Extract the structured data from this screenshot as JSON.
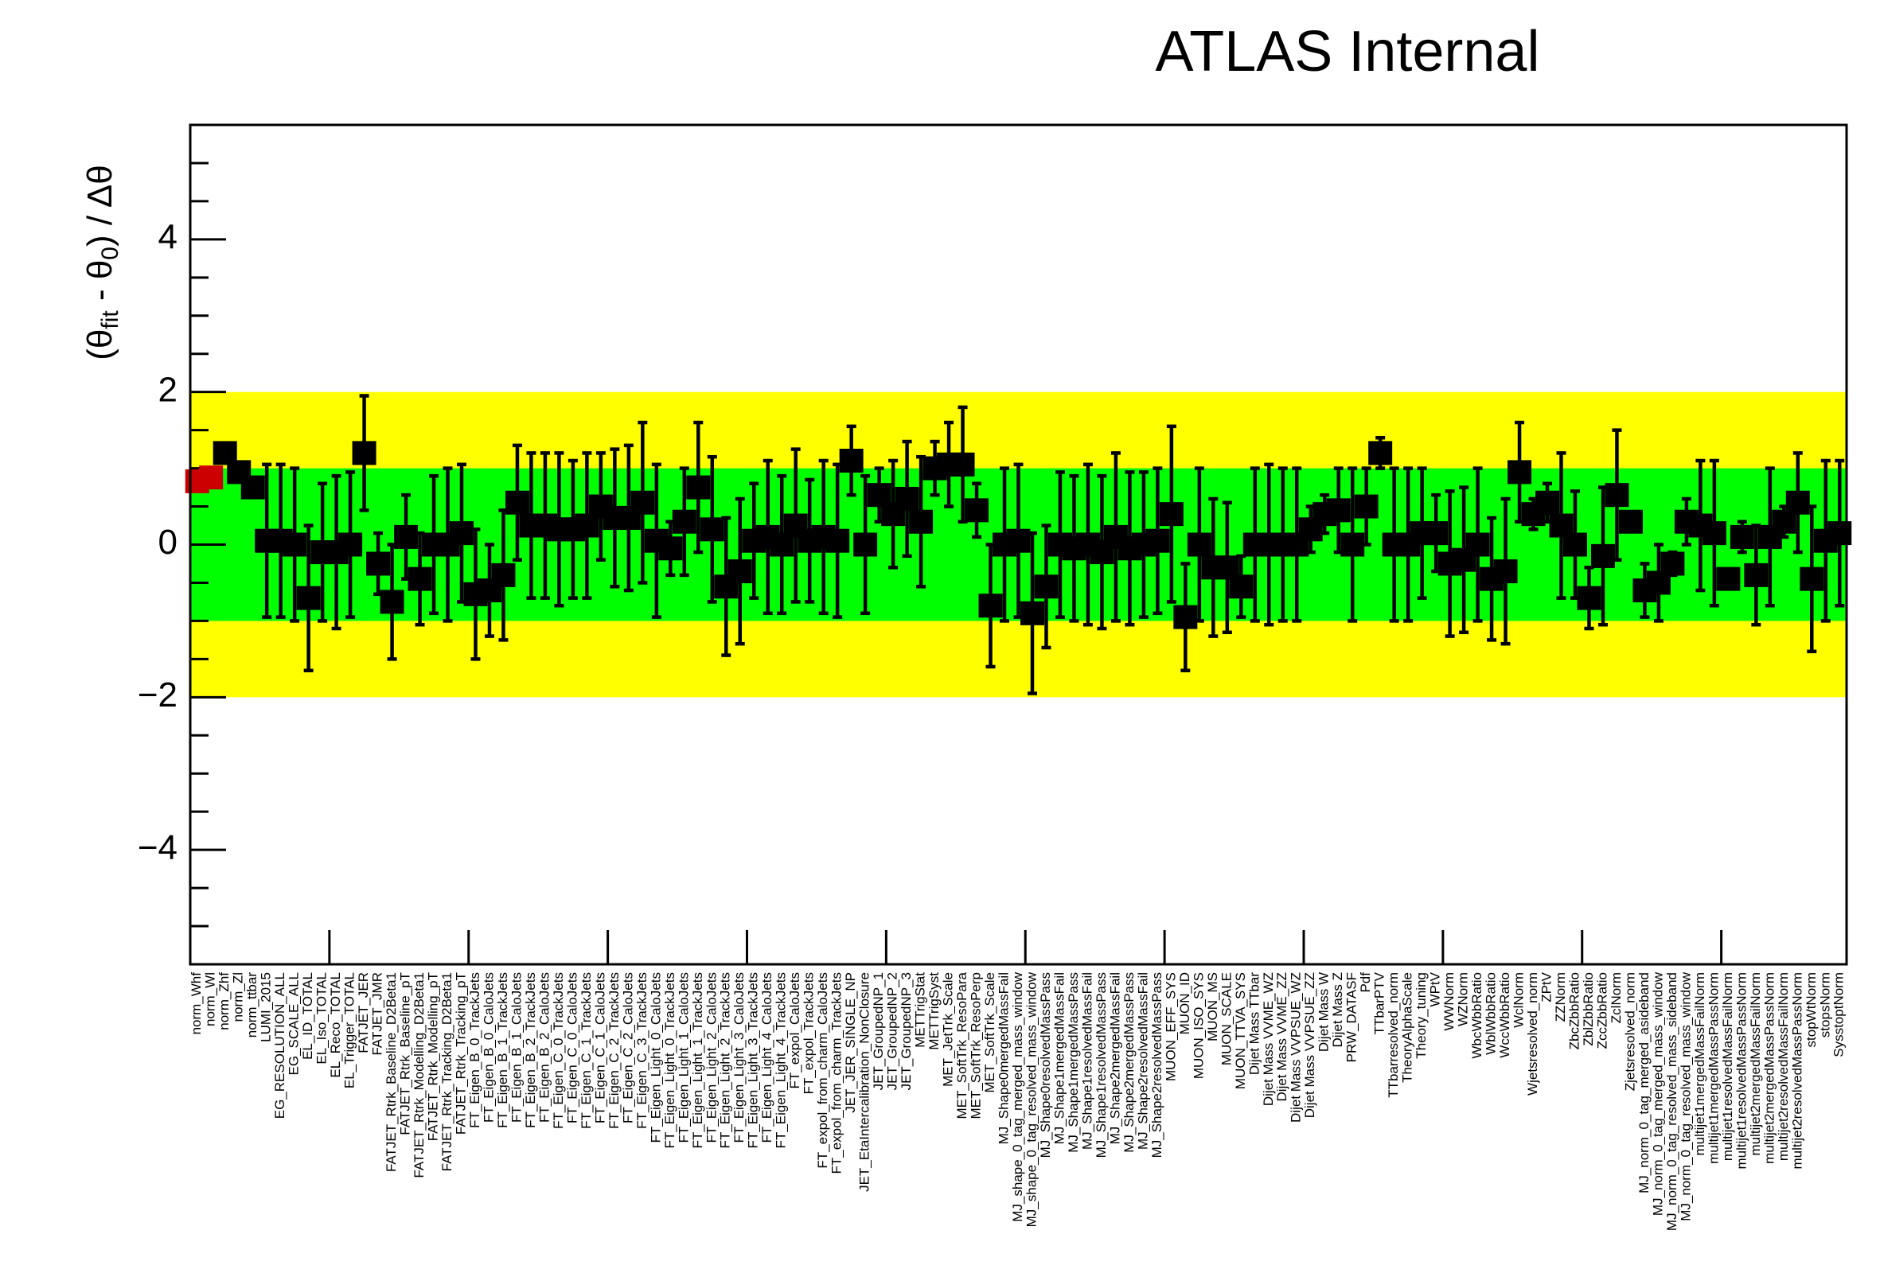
{
  "chart_data": {
    "type": "errorbar",
    "title": "ATLAS Internal",
    "ylabel": [
      "(θ",
      "fit",
      " - θ",
      "0",
      ") / Δθ"
    ],
    "categories": [
      "norm_Whf",
      "norm_Wl",
      "norm_Zhf",
      "norm_Zl",
      "norm_ttbar",
      "LUMI_2015",
      "EG_RESOLUTION_ALL",
      "EG_SCALE_ALL",
      "EL_ID_TOTAL",
      "EL_Iso_TOTAL",
      "EL_Reco_TOTAL",
      "EL_Trigger_TOTAL",
      "FATJET_JER",
      "FATJET_JMR",
      "FATJET_Rtrk_Baseline_D2Beta1",
      "FATJET_Rtrk_Baseline_pT",
      "FATJET_Rtrk_Modelling_D2Beta1",
      "FATJET_Rtrk_Modelling_pT",
      "FATJET_Rtrk_Tracking_D2Beta1",
      "FATJET_Rtrk_Tracking_pT",
      "FT_Eigen_B_0_TrackJets",
      "FT_Eigen_B_0_CaloJets",
      "FT_Eigen_B_1_TrackJets",
      "FT_Eigen_B_1_CaloJets",
      "FT_Eigen_B_2_TrackJets",
      "FT_Eigen_B_2_CaloJets",
      "FT_Eigen_C_0_TrackJets",
      "FT_Eigen_C_0_CaloJets",
      "FT_Eigen_C_1_TrackJets",
      "FT_Eigen_C_1_CaloJets",
      "FT_Eigen_C_2_TrackJets",
      "FT_Eigen_C_2_CaloJets",
      "FT_Eigen_C_3_TrackJets",
      "FT_Eigen_Light_0_CaloJets",
      "FT_Eigen_Light_0_TrackJets",
      "FT_Eigen_Light_1_CaloJets",
      "FT_Eigen_Light_1_TrackJets",
      "FT_Eigen_Light_2_CaloJets",
      "FT_Eigen_Light_2_TrackJets",
      "FT_Eigen_Light_3_CaloJets",
      "FT_Eigen_Light_3_TrackJets",
      "FT_Eigen_Light_4_CaloJets",
      "FT_Eigen_Light_4_TrackJets",
      "FT_expol_CaloJets",
      "FT_expol_TrackJets",
      "FT_expol_from_charm_CaloJets",
      "FT_expol_from_charm_TrackJets",
      "JET_JER_SINGLE_NP",
      "JET_EtaIntercalibration_NonClosure",
      "JET_GroupedNP_1",
      "JET_GroupedNP_2",
      "JET_GroupedNP_3",
      "METTrigStat",
      "METTrigSyst",
      "MET_JetTrk_Scale",
      "MET_SoftTrk_ResoPara",
      "MET_SoftTrk_ResoPerp",
      "MET_SoftTrk_Scale",
      "MJ_Shape0mergedMassFail",
      "MJ_shape_0_tag_merged_mass_window",
      "MJ_shape_0_tag_resolved_mass_window",
      "MJ_Shape0resolvedMassPass",
      "MJ_Shape1mergedMassFail",
      "MJ_Shape1mergedMassPass",
      "MJ_Shape1resolvedMassFail",
      "MJ_Shape1resolvedMassPass",
      "MJ_Shape2mergedMassFail",
      "MJ_Shape2mergedMassPass",
      "MJ_Shape2resolvedMassFail",
      "MJ_Shape2resolvedMassPass",
      "MUON_EFF_SYS",
      "MUON_ID",
      "MUON_ISO_SYS",
      "MUON_MS",
      "MUON_SCALE",
      "MUON_TTVA_SYS",
      "Dijet Mass TTbar",
      "Dijet Mass VVME_WZ",
      "Dijet Mass VVME_ZZ",
      "Dijet Mass VVPSUE_WZ",
      "Dijet Mass VVPSUE_ZZ",
      "Dijet Mass W",
      "Dijet Mass Z",
      "PRW_DATASF",
      "Pdf",
      "TTbarPTV",
      "TTbarresolved_norm",
      "TheoryAlphaScale",
      "Theory_tuning",
      "WPtV",
      "WWNorm",
      "WZNorm",
      "WbcWbbRatio",
      "WblWbbRatio",
      "WccWbbRatio",
      "WclNorm",
      "Wjetsresolved_norm",
      "ZPtV",
      "ZZNorm",
      "ZbcZbbRatio",
      "ZblZbbRatio",
      "ZccZbbRatio",
      "ZclNorm",
      "Zjetsresolved_norm",
      "MJ_norm_0_tag_merged_asideband",
      "MJ_norm_0_tag_merged_mass_window",
      "MJ_norm_0_tag_resolved_mass_sideband",
      "MJ_norm_0_tag_resolved_mass_window",
      "multijet1mergedMassFailNorm",
      "multijet1mergedMassPassNorm",
      "multijet1resolvedMassFailNorm",
      "multijet1resolvedMassPassNorm",
      "multijet2mergedMassFailNorm",
      "multijet2mergedMassPassNorm",
      "multijet2resolvedMassFailNorm",
      "multijet2resolvedMassPassNorm",
      "stopWtNorm",
      "stopsNorm",
      "SysstoptNorm"
    ],
    "values": [
      0.83,
      0.88,
      1.2,
      0.95,
      0.75,
      0.05,
      0.05,
      0.0,
      -0.7,
      -0.1,
      -0.1,
      0.0,
      1.2,
      -0.25,
      -0.75,
      0.1,
      -0.45,
      0.0,
      0.0,
      0.15,
      -0.65,
      -0.6,
      -0.4,
      0.55,
      0.25,
      0.25,
      0.2,
      0.2,
      0.25,
      0.5,
      0.35,
      0.35,
      0.55,
      0.05,
      -0.05,
      0.3,
      0.75,
      0.2,
      -0.55,
      -0.35,
      0.05,
      0.1,
      0.0,
      0.25,
      0.05,
      0.1,
      0.05,
      1.1,
      0.0,
      0.65,
      0.4,
      0.6,
      0.3,
      1.0,
      1.05,
      1.05,
      0.45,
      -0.8,
      0.0,
      0.05,
      -0.9,
      -0.55,
      0.0,
      -0.05,
      0.0,
      -0.1,
      0.1,
      -0.05,
      0.0,
      0.05,
      0.4,
      -0.95,
      0.0,
      -0.3,
      -0.3,
      -0.55,
      0.0,
      0.0,
      0.0,
      0.0,
      0.2,
      0.4,
      0.45,
      0.0,
      0.5,
      1.2,
      0.0,
      0.0,
      0.15,
      0.15,
      -0.25,
      -0.2,
      0.0,
      -0.45,
      -0.35,
      0.95,
      0.4,
      0.55,
      0.25,
      0.0,
      -0.7,
      -0.15,
      0.65,
      0.3,
      -0.6,
      -0.5,
      -0.25,
      0.3,
      0.25,
      0.15,
      -0.45,
      0.1,
      -0.4,
      0.1,
      0.3,
      0.55,
      -0.45,
      0.05,
      0.15
    ],
    "errors": [
      null,
      null,
      null,
      null,
      null,
      1.0,
      1.0,
      1.0,
      0.95,
      0.9,
      1.0,
      0.95,
      0.75,
      0.4,
      0.75,
      0.55,
      0.6,
      0.9,
      1.0,
      0.9,
      0.85,
      0.6,
      0.85,
      0.75,
      0.95,
      0.95,
      1.0,
      0.9,
      0.95,
      0.7,
      0.9,
      0.95,
      1.05,
      1.0,
      0.35,
      0.7,
      0.85,
      0.95,
      0.9,
      0.95,
      0.75,
      1.0,
      0.9,
      1.0,
      0.8,
      1.0,
      1.0,
      0.45,
      0.9,
      0.35,
      0.7,
      0.75,
      0.85,
      0.35,
      0.55,
      0.75,
      0.35,
      0.8,
      1.0,
      1.0,
      1.05,
      0.8,
      0.95,
      0.95,
      1.05,
      1.0,
      1.1,
      1.0,
      0.95,
      0.95,
      1.15,
      0.7,
      1.0,
      0.9,
      0.85,
      0.4,
      1.0,
      1.05,
      1.0,
      1.0,
      0.3,
      0.25,
      0.55,
      1.0,
      0.5,
      0.2,
      1.0,
      1.0,
      0.85,
      0.5,
      0.95,
      0.95,
      1.0,
      0.8,
      0.95,
      0.65,
      0.2,
      0.25,
      0.95,
      0.7,
      0.4,
      0.9,
      0.85,
      0.1,
      0.35,
      0.5,
      0.15,
      0.3,
      0.85,
      0.95,
      0.1,
      0.2,
      0.65,
      0.9,
      0.2,
      0.65,
      0.95,
      1.05,
      0.95
    ],
    "colors": [
      "#cc0000",
      "#cc0000",
      "#000000",
      "#000000",
      "#000000",
      "#000000",
      "#000000",
      "#000000",
      "#000000",
      "#000000",
      "#000000",
      "#000000",
      "#000000",
      "#000000",
      "#000000",
      "#000000",
      "#000000",
      "#000000",
      "#000000",
      "#000000",
      "#000000",
      "#000000",
      "#000000",
      "#000000",
      "#000000",
      "#000000",
      "#000000",
      "#000000",
      "#000000",
      "#000000",
      "#000000",
      "#000000",
      "#000000",
      "#000000",
      "#000000",
      "#000000",
      "#000000",
      "#000000",
      "#000000",
      "#000000",
      "#000000",
      "#000000",
      "#000000",
      "#000000",
      "#000000",
      "#000000",
      "#000000",
      "#000000",
      "#000000",
      "#000000",
      "#000000",
      "#000000",
      "#000000",
      "#000000",
      "#000000",
      "#000000",
      "#000000",
      "#000000",
      "#000000",
      "#000000",
      "#000000",
      "#000000",
      "#000000",
      "#000000",
      "#000000",
      "#000000",
      "#000000",
      "#000000",
      "#000000",
      "#000000",
      "#000000",
      "#000000",
      "#000000",
      "#000000",
      "#000000",
      "#000000",
      "#000000",
      "#000000",
      "#000000",
      "#000000",
      "#000000",
      "#000000",
      "#000000",
      "#000000",
      "#000000",
      "#000000",
      "#000000",
      "#000000",
      "#000000",
      "#000000",
      "#000000",
      "#000000",
      "#000000",
      "#000000",
      "#000000",
      "#000000",
      "#000000",
      "#000000",
      "#000000",
      "#000000",
      "#000000",
      "#000000",
      "#000000",
      "#000000",
      "#000000",
      "#000000",
      "#000000",
      "#000000",
      "#000000",
      "#000000",
      "#000000",
      "#000000",
      "#000000",
      "#000000",
      "#000000",
      "#000000",
      "#000000",
      "#000000",
      "#000000"
    ],
    "bands": [
      {
        "lo": -2,
        "hi": 2,
        "color": "#ffff00"
      },
      {
        "lo": -1,
        "hi": 1,
        "color": "#00ff00"
      }
    ],
    "ylim": [
      -5.5,
      5.5
    ],
    "yticks": [
      {
        "value": -4,
        "label": "−4"
      },
      {
        "value": -2,
        "label": "−2"
      },
      0,
      2,
      4
    ],
    "yminorticks": [
      -5,
      -4.5,
      -3.5,
      -3,
      -2.5,
      -1.5,
      -1,
      -0.5,
      0.5,
      1,
      1.5,
      2.5,
      3,
      3.5,
      4.5,
      5
    ]
  }
}
